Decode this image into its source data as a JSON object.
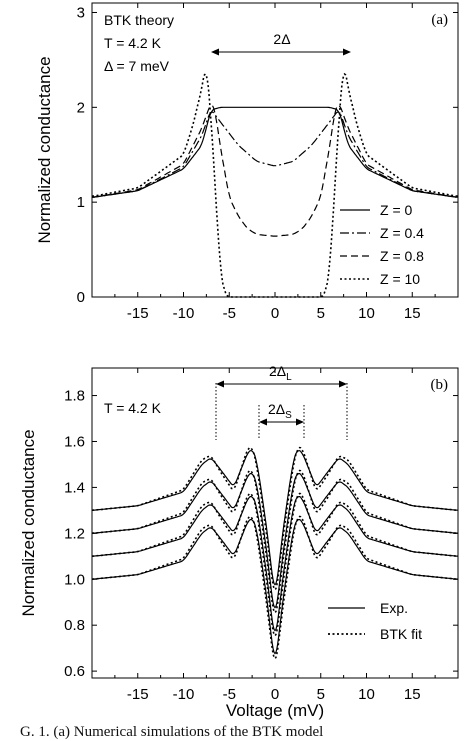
{
  "chart_data": [
    {
      "panel_label": "(a)",
      "type": "line",
      "ylabel": "Normalized conductance",
      "xlabel": "",
      "xlim": [
        -20,
        20
      ],
      "ylim": [
        0,
        3.1
      ],
      "xticks": [
        -15,
        -10,
        -5,
        0,
        5,
        10,
        15
      ],
      "yticks": [
        0,
        1,
        2,
        3
      ],
      "annotations": {
        "theory_label": "BTK theory",
        "temperature": "T = 4.2 K",
        "gap": "Δ = 7 meV",
        "gap_arrow": "2Δ"
      },
      "legend_position": "bottom-right",
      "series": [
        {
          "name": "Z = 0",
          "style": "solid",
          "x": [
            -20,
            -15,
            -10,
            -8,
            -7,
            -6,
            -3,
            0,
            3,
            6,
            7,
            8,
            10,
            15,
            20
          ],
          "y": [
            1.05,
            1.12,
            1.35,
            1.6,
            1.97,
            2.0,
            2.0,
            2.0,
            2.0,
            2.0,
            1.97,
            1.6,
            1.35,
            1.12,
            1.05
          ]
        },
        {
          "name": "Z = 0.4",
          "style": "dashdot",
          "x": [
            -20,
            -15,
            -10,
            -8,
            -7,
            -6,
            -4,
            -2,
            0,
            2,
            4,
            6,
            7,
            8,
            10,
            15,
            20
          ],
          "y": [
            1.05,
            1.12,
            1.37,
            1.7,
            1.98,
            1.85,
            1.6,
            1.43,
            1.38,
            1.43,
            1.6,
            1.85,
            1.98,
            1.7,
            1.37,
            1.12,
            1.05
          ]
        },
        {
          "name": "Z = 0.8",
          "style": "dashed",
          "x": [
            -20,
            -15,
            -10,
            -8,
            -7,
            -6.6,
            -6,
            -5,
            -4,
            -3,
            -2,
            0,
            2,
            3,
            4,
            5,
            6,
            6.6,
            7,
            8,
            10,
            15,
            20
          ],
          "y": [
            1.05,
            1.13,
            1.4,
            1.78,
            2.05,
            2.0,
            1.6,
            1.05,
            0.85,
            0.72,
            0.66,
            0.64,
            0.66,
            0.72,
            0.85,
            1.05,
            1.6,
            2.0,
            2.05,
            1.78,
            1.4,
            1.13,
            1.05
          ]
        },
        {
          "name": "Z = 10",
          "style": "dotted",
          "x": [
            -20,
            -15,
            -10,
            -9,
            -8,
            -7.5,
            -7,
            -6.5,
            -6,
            -5.5,
            -5,
            0,
            5,
            5.5,
            6,
            6.5,
            7,
            7.5,
            8,
            9,
            10,
            15,
            20
          ],
          "y": [
            1.06,
            1.15,
            1.5,
            1.8,
            2.2,
            2.48,
            1.9,
            1.1,
            0.3,
            0.03,
            0,
            0,
            0,
            0.03,
            0.3,
            1.1,
            1.9,
            2.48,
            2.2,
            1.8,
            1.5,
            1.15,
            1.06
          ]
        }
      ]
    },
    {
      "panel_label": "(b)",
      "type": "line",
      "ylabel": "Normalized conductance",
      "xlabel": "Voltage (mV)",
      "xlim": [
        -20,
        20
      ],
      "ylim": [
        0.57,
        1.92
      ],
      "xticks": [
        -15,
        -10,
        -5,
        0,
        5,
        10,
        15
      ],
      "yticks": [
        0.6,
        0.8,
        1.0,
        1.2,
        1.4,
        1.6,
        1.8
      ],
      "annotations": {
        "temperature": "T = 4.2 K",
        "large_gap_arrow": "2Δ",
        "large_gap_sub": "L",
        "small_gap_arrow": "2Δ",
        "small_gap_sub": "S"
      },
      "legend_position": "bottom-right",
      "legend": [
        {
          "name": "Exp.",
          "style": "solid"
        },
        {
          "name": "BTK fit",
          "style": "dotted"
        }
      ],
      "series": [
        {
          "name": "Exp.",
          "style": "solid",
          "offset": 0.3,
          "x": [
            -20,
            -15,
            -10,
            -8,
            -7,
            -6,
            -4.5,
            -3,
            -2.5,
            -2,
            -1,
            0,
            1,
            2,
            2.5,
            3,
            4.5,
            6,
            7,
            8,
            10,
            15,
            20
          ],
          "y": [
            1.0,
            1.02,
            1.08,
            1.2,
            1.23,
            1.18,
            1.1,
            1.25,
            1.27,
            1.22,
            0.95,
            0.62,
            0.95,
            1.22,
            1.27,
            1.25,
            1.1,
            1.18,
            1.23,
            1.2,
            1.08,
            1.02,
            1.0
          ]
        },
        {
          "name": "Exp.",
          "style": "solid",
          "offset": 0.2,
          "x": [
            -20,
            -15,
            -10,
            -8,
            -7,
            -6,
            -4.5,
            -3,
            -2.5,
            -2,
            -1,
            0,
            1,
            2,
            2.5,
            3,
            4.5,
            6,
            7,
            8,
            10,
            15,
            20
          ],
          "y": [
            1.0,
            1.02,
            1.08,
            1.2,
            1.23,
            1.18,
            1.1,
            1.25,
            1.27,
            1.22,
            0.95,
            0.62,
            0.95,
            1.22,
            1.27,
            1.25,
            1.1,
            1.18,
            1.23,
            1.2,
            1.08,
            1.02,
            1.0
          ]
        },
        {
          "name": "Exp.",
          "style": "solid",
          "offset": 0.1,
          "x": [
            -20,
            -15,
            -10,
            -8,
            -7,
            -6,
            -4.5,
            -3,
            -2.5,
            -2,
            -1,
            0,
            1,
            2,
            2.5,
            3,
            4.5,
            6,
            7,
            8,
            10,
            15,
            20
          ],
          "y": [
            1.0,
            1.02,
            1.08,
            1.2,
            1.23,
            1.18,
            1.1,
            1.25,
            1.27,
            1.22,
            0.95,
            0.62,
            0.95,
            1.22,
            1.27,
            1.25,
            1.1,
            1.18,
            1.23,
            1.2,
            1.08,
            1.02,
            1.0
          ]
        },
        {
          "name": "Exp.",
          "style": "solid",
          "offset": 0.0,
          "x": [
            -20,
            -15,
            -10,
            -8,
            -7,
            -6,
            -4.5,
            -3,
            -2.5,
            -2,
            -1,
            0,
            1,
            2,
            2.5,
            3,
            4.5,
            6,
            7,
            8,
            10,
            15,
            20
          ],
          "y": [
            1.0,
            1.02,
            1.08,
            1.2,
            1.23,
            1.18,
            1.1,
            1.25,
            1.27,
            1.22,
            0.95,
            0.62,
            0.95,
            1.22,
            1.27,
            1.25,
            1.1,
            1.18,
            1.23,
            1.2,
            1.08,
            1.02,
            1.0
          ]
        },
        {
          "name": "BTK fit",
          "style": "dotted",
          "offset": 0.3,
          "x": [
            -20,
            -15,
            -10,
            -8,
            -7,
            -6,
            -4.5,
            -3,
            -2.5,
            -2,
            -1,
            0,
            1,
            2,
            2.5,
            3,
            4.5,
            6,
            7,
            8,
            10,
            15,
            20
          ],
          "y": [
            1.0,
            1.02,
            1.09,
            1.22,
            1.24,
            1.17,
            1.08,
            1.27,
            1.28,
            1.2,
            0.92,
            0.6,
            0.92,
            1.2,
            1.28,
            1.27,
            1.08,
            1.17,
            1.24,
            1.22,
            1.09,
            1.02,
            1.0
          ]
        },
        {
          "name": "BTK fit",
          "style": "dotted",
          "offset": 0.2,
          "x": [
            -20,
            -15,
            -10,
            -8,
            -7,
            -6,
            -4.5,
            -3,
            -2.5,
            -2,
            -1,
            0,
            1,
            2,
            2.5,
            3,
            4.5,
            6,
            7,
            8,
            10,
            15,
            20
          ],
          "y": [
            1.0,
            1.02,
            1.09,
            1.22,
            1.24,
            1.17,
            1.08,
            1.27,
            1.28,
            1.2,
            0.92,
            0.6,
            0.92,
            1.2,
            1.28,
            1.27,
            1.08,
            1.17,
            1.24,
            1.22,
            1.09,
            1.02,
            1.0
          ]
        },
        {
          "name": "BTK fit",
          "style": "dotted",
          "offset": 0.1,
          "x": [
            -20,
            -15,
            -10,
            -8,
            -7,
            -6,
            -4.5,
            -3,
            -2.5,
            -2,
            -1,
            0,
            1,
            2,
            2.5,
            3,
            4.5,
            6,
            7,
            8,
            10,
            15,
            20
          ],
          "y": [
            1.0,
            1.02,
            1.09,
            1.22,
            1.24,
            1.17,
            1.08,
            1.27,
            1.28,
            1.2,
            0.92,
            0.6,
            0.92,
            1.2,
            1.28,
            1.27,
            1.08,
            1.17,
            1.24,
            1.22,
            1.09,
            1.02,
            1.0
          ]
        },
        {
          "name": "BTK fit",
          "style": "dotted",
          "offset": 0.0,
          "x": [
            -20,
            -15,
            -10,
            -8,
            -7,
            -6,
            -4.5,
            -3,
            -2.5,
            -2,
            -1,
            0,
            1,
            2,
            2.5,
            3,
            4.5,
            6,
            7,
            8,
            10,
            15,
            20
          ],
          "y": [
            1.0,
            1.02,
            1.09,
            1.22,
            1.24,
            1.17,
            1.08,
            1.27,
            1.28,
            1.2,
            0.92,
            0.6,
            0.92,
            1.2,
            1.28,
            1.27,
            1.08,
            1.17,
            1.24,
            1.22,
            1.09,
            1.02,
            1.0
          ]
        }
      ]
    }
  ],
  "caption": "G. 1.   (a)   Numerical simulations of the BTK model"
}
